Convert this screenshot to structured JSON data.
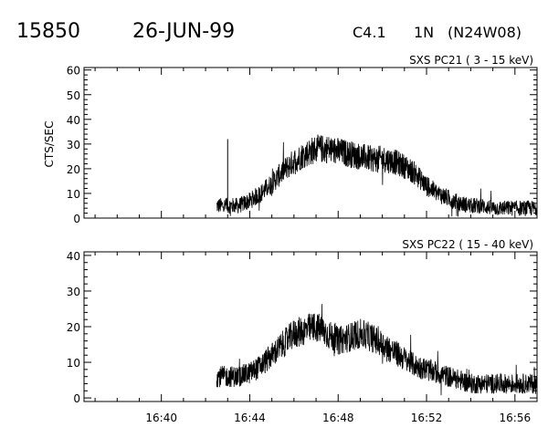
{
  "header": {
    "event_id": "15850",
    "date": "26-JUN-99",
    "flare_class": "C4.1",
    "optical_class": "1N",
    "location": "(N24W08)"
  },
  "chart_data": [
    {
      "type": "line",
      "title": "SXS PC21  (  3 - 15 keV)",
      "ylabel": "CTS/SEC",
      "xlabel": "",
      "ylim": [
        0,
        61
      ],
      "yticks": [
        0,
        10,
        20,
        30,
        40,
        50,
        60
      ],
      "xlim": [
        "16:36:30",
        "16:57:00"
      ],
      "xticks": [
        "16:40",
        "16:44",
        "16:48",
        "16:52",
        "16:56"
      ],
      "grid": false,
      "legend": "none",
      "noise_amplitude": 4.5,
      "spikes": [
        {
          "x": "16:43:00",
          "y": 32
        }
      ],
      "series": [
        {
          "data_start": "16:42:30",
          "x": [
            "16:42:30",
            "16:43:30",
            "16:44:00",
            "16:44:30",
            "16:45:00",
            "16:45:30",
            "16:46:00",
            "16:46:30",
            "16:47:00",
            "16:47:30",
            "16:48:00",
            "16:48:30",
            "16:49:00",
            "16:49:30",
            "16:50:00",
            "16:50:30",
            "16:51:00",
            "16:51:30",
            "16:52:00",
            "16:52:30",
            "16:53:00",
            "16:53:30",
            "16:54:00",
            "16:54:30",
            "16:55:00",
            "16:55:30",
            "16:56:00",
            "16:56:30",
            "16:57:00"
          ],
          "values": [
            5,
            5,
            7,
            10,
            14,
            19,
            23,
            26,
            28,
            28,
            27,
            26,
            25,
            24,
            24,
            23,
            21,
            18,
            13,
            10,
            8,
            6,
            5,
            5,
            4,
            4,
            4,
            4,
            4
          ]
        }
      ]
    },
    {
      "type": "line",
      "title": "SXS PC22  ( 15 - 40 keV)",
      "ylabel": "",
      "xlabel": "",
      "ylim": [
        -1,
        41
      ],
      "yticks": [
        0,
        10,
        20,
        30,
        40
      ],
      "xlim": [
        "16:36:30",
        "16:57:00"
      ],
      "xticks": [
        "16:40",
        "16:44",
        "16:48",
        "16:52",
        "16:56"
      ],
      "grid": false,
      "legend": "none",
      "noise_amplitude": 4.0,
      "spikes": [],
      "series": [
        {
          "data_start": "16:42:30",
          "x": [
            "16:42:30",
            "16:43:30",
            "16:44:00",
            "16:44:30",
            "16:45:00",
            "16:45:30",
            "16:46:00",
            "16:46:30",
            "16:47:00",
            "16:47:30",
            "16:48:00",
            "16:48:30",
            "16:49:00",
            "16:49:30",
            "16:50:00",
            "16:50:30",
            "16:51:00",
            "16:51:30",
            "16:52:00",
            "16:52:30",
            "16:53:00",
            "16:53:30",
            "16:54:00",
            "16:54:30",
            "16:55:00",
            "16:55:30",
            "16:56:00",
            "16:56:30",
            "16:57:00"
          ],
          "values": [
            6,
            6,
            7,
            9,
            12,
            15,
            18,
            19,
            20,
            18,
            16,
            17,
            18,
            17,
            15,
            13,
            11,
            9,
            8,
            7,
            6,
            5,
            4,
            4,
            4,
            4,
            4,
            4,
            4
          ]
        }
      ]
    }
  ]
}
